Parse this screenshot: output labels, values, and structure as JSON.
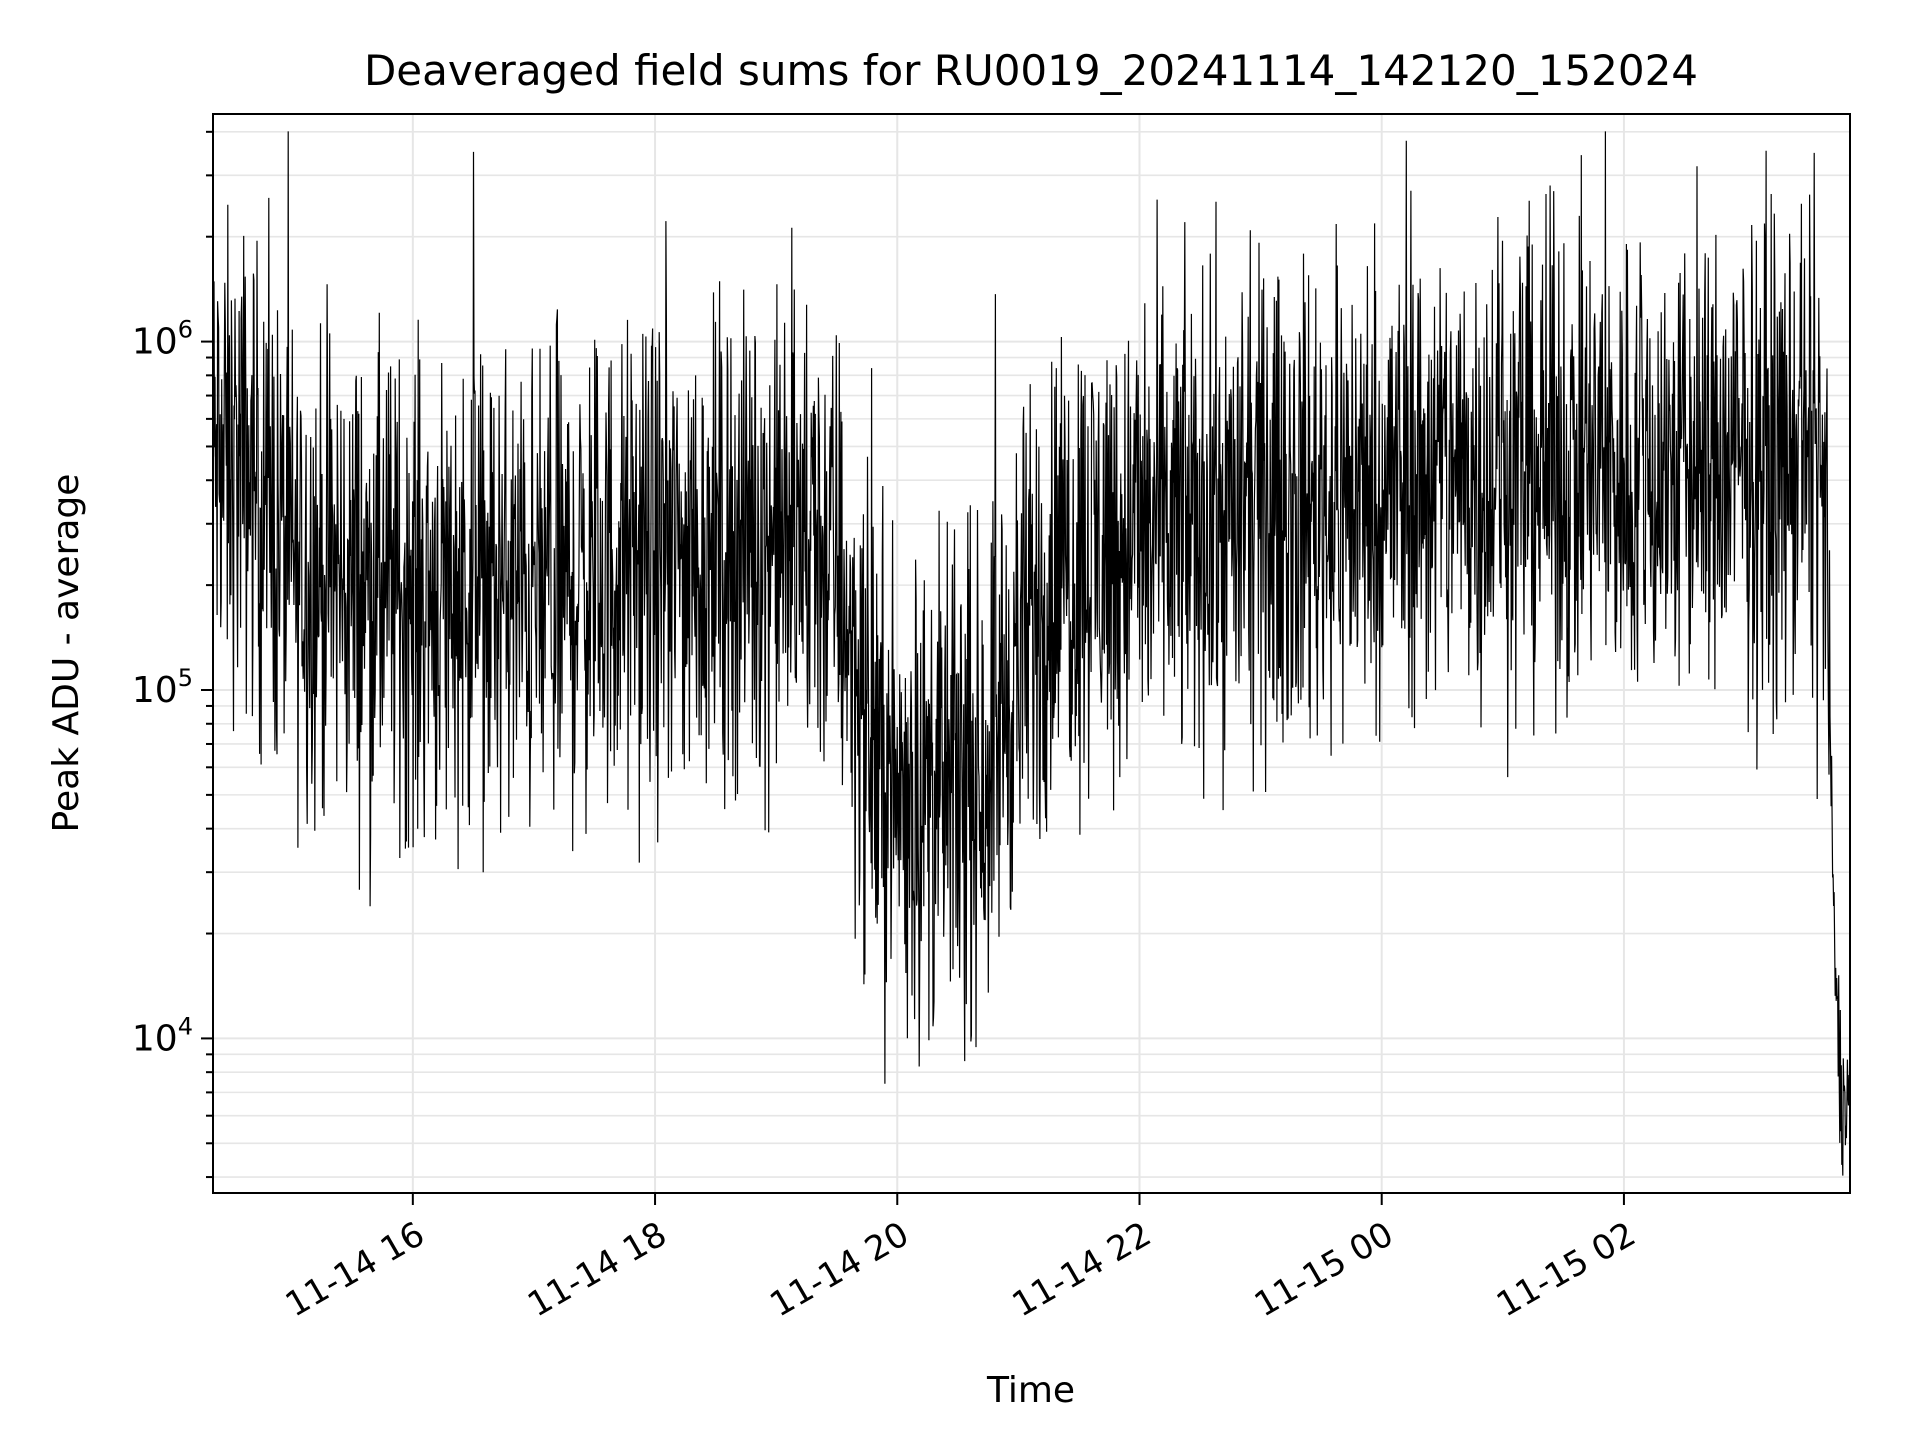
{
  "chart_data": {
    "type": "line",
    "title": "Deaveraged field sums for RU0019_20241114_142120_152024",
    "xlabel": "Time",
    "ylabel": "Peak ADU - average",
    "yscale": "log",
    "xlim": [
      "2024-11-14 14:21",
      "2024-11-15 03:52"
    ],
    "ylim": [
      3600,
      4500000
    ],
    "x_ticks": [
      {
        "t": "2024-11-14 16:00",
        "label": "11-14 16"
      },
      {
        "t": "2024-11-14 18:00",
        "label": "11-14 18"
      },
      {
        "t": "2024-11-14 20:00",
        "label": "11-14 20"
      },
      {
        "t": "2024-11-14 22:00",
        "label": "11-14 22"
      },
      {
        "t": "2024-11-15 00:00",
        "label": "11-15 00"
      },
      {
        "t": "2024-11-15 02:00",
        "label": "11-15 02"
      }
    ],
    "y_major_ticks": [
      {
        "value": 10000,
        "base": "10",
        "exp": "4"
      },
      {
        "value": 100000,
        "base": "10",
        "exp": "5"
      },
      {
        "value": 1000000,
        "base": "10",
        "exp": "6"
      }
    ],
    "grid": true,
    "line_color": "#000000",
    "grid_color": "#e6e6e6",
    "series": [
      {
        "x": [
          "2024-11-14 14:21",
          "2024-11-14 14:40",
          "2024-11-14 15:00",
          "2024-11-14 15:30",
          "2024-11-14 16:00",
          "2024-11-14 16:30",
          "2024-11-14 17:00",
          "2024-11-14 17:30",
          "2024-11-14 18:00",
          "2024-11-14 18:30",
          "2024-11-14 19:00",
          "2024-11-14 19:30",
          "2024-11-14 19:45",
          "2024-11-14 20:00",
          "2024-11-14 20:20",
          "2024-11-14 20:40",
          "2024-11-14 21:00",
          "2024-11-14 21:20",
          "2024-11-14 21:40",
          "2024-11-14 22:00",
          "2024-11-14 22:30",
          "2024-11-14 23:00",
          "2024-11-14 23:30",
          "2024-11-15 00:00",
          "2024-11-15 00:30",
          "2024-11-15 01:00",
          "2024-11-15 01:30",
          "2024-11-15 02:00",
          "2024-11-15 02:30",
          "2024-11-15 03:00",
          "2024-11-15 03:20",
          "2024-11-15 03:35",
          "2024-11-15 03:40",
          "2024-11-15 03:44",
          "2024-11-15 03:48",
          "2024-11-15 03:52"
        ],
        "y": [
          450000,
          420000,
          230000,
          200000,
          190000,
          200000,
          180000,
          210000,
          230000,
          250000,
          280000,
          240000,
          75000,
          50000,
          50000,
          55000,
          120000,
          230000,
          260000,
          280000,
          300000,
          320000,
          350000,
          380000,
          420000,
          450000,
          440000,
          420000,
          430000,
          440000,
          450000,
          460000,
          300000,
          20000,
          6500,
          7000
        ]
      }
    ]
  }
}
